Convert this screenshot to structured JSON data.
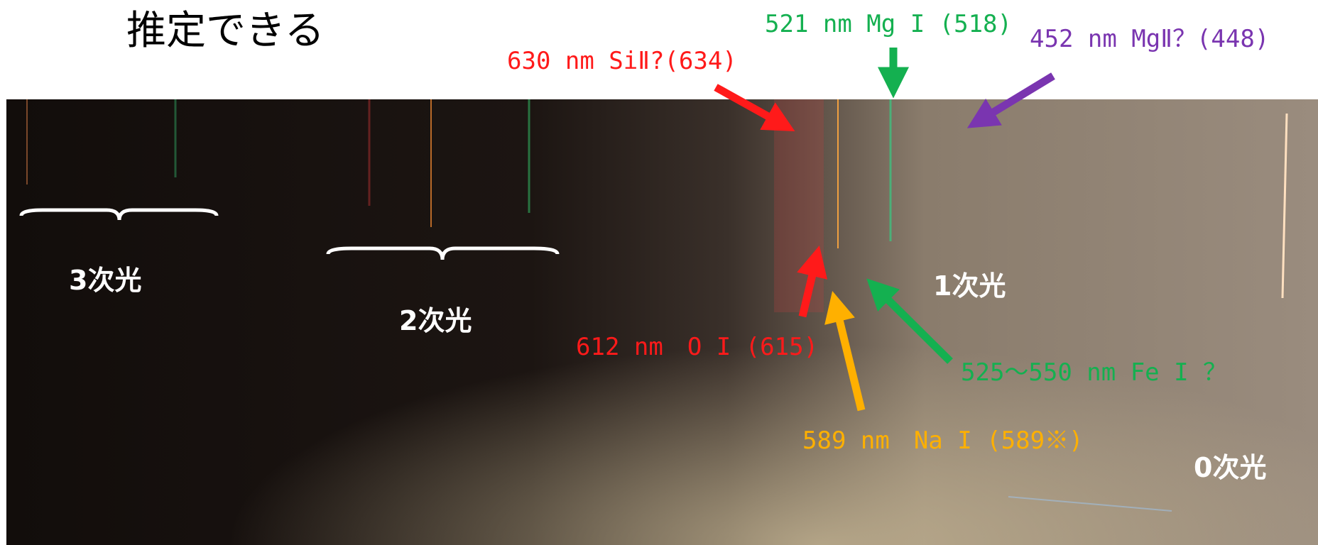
{
  "header": {
    "title": "推定できる"
  },
  "orders": [
    "3次光",
    "2次光",
    "1次光",
    "0次光"
  ],
  "annotations": [
    "521 nm Mg I (518)",
    "452 nm MgⅡ？(448)",
    "630 nm SiⅡ?(634)",
    "612 nm　O I (615)",
    "525～550 nm Fe I ？",
    "589 nm　Na I (589※)"
  ]
}
